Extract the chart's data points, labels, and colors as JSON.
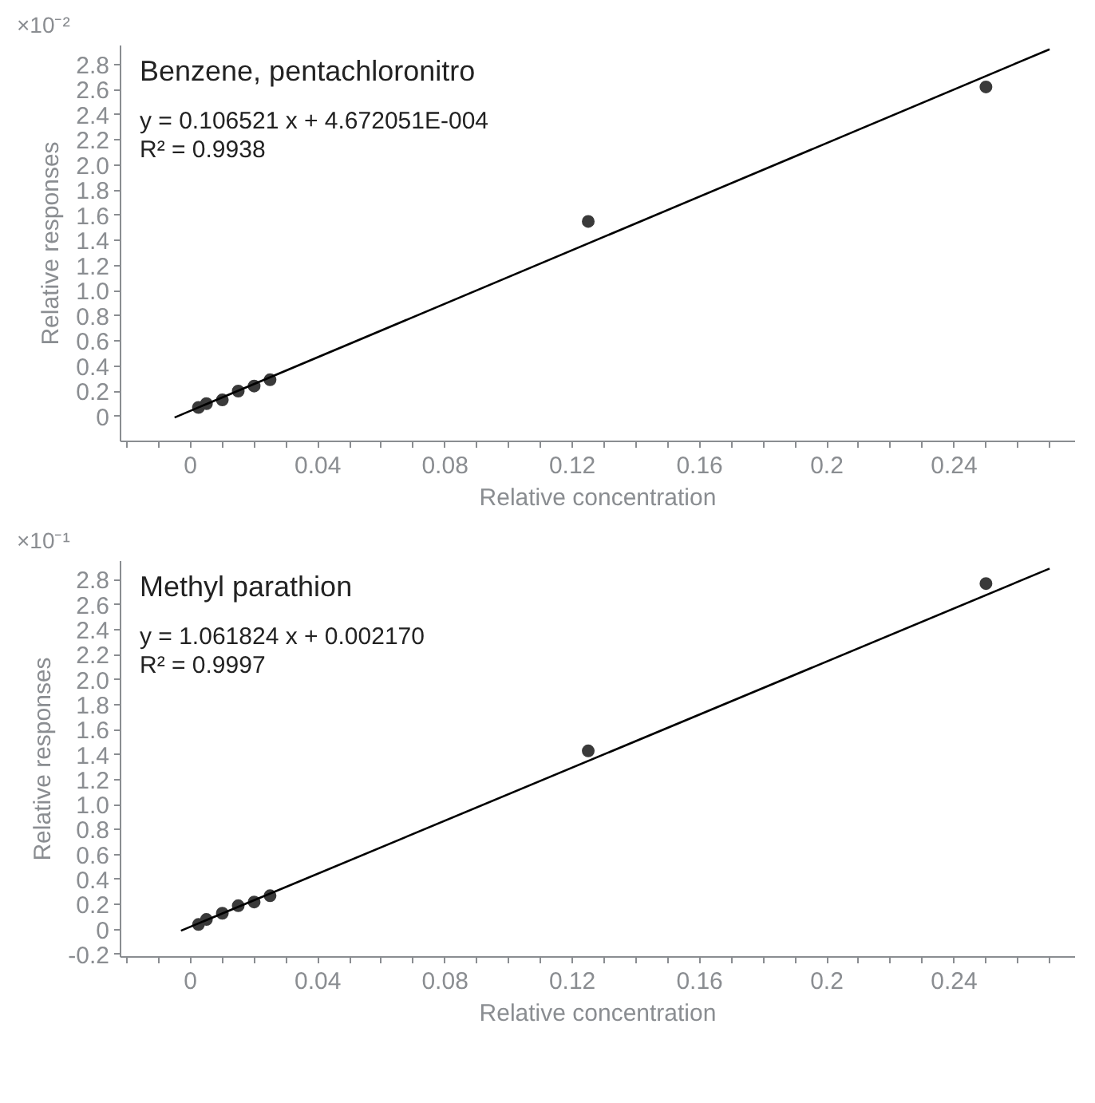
{
  "chart_data": [
    {
      "type": "scatter",
      "title": "Benzene, pentachloronitro",
      "xlabel": "Relative concentration",
      "ylabel": "Relative responses",
      "annotations": [
        "×10⁻²",
        "y = 0.106521 x + 4.672051E-004",
        "R² = 0.9938"
      ],
      "x": [
        0.0025,
        0.005,
        0.01,
        0.015,
        0.02,
        0.025,
        0.125,
        0.25
      ],
      "series": [
        {
          "color": "#3a3a3a",
          "marker": "circle",
          "values": [
            0.07,
            0.1,
            0.13,
            0.2,
            0.24,
            0.29,
            1.55,
            2.62
          ]
        },
        {
          "type": "line",
          "color": "#000000",
          "x": [
            -0.005,
            0.27
          ],
          "values": [
            -0.01,
            2.92
          ]
        }
      ],
      "xlim": [
        -0.022,
        0.278
      ],
      "ylim": [
        -0.2,
        2.95
      ],
      "xticks": [
        {
          "value": -0.02,
          "label": null
        },
        {
          "value": -0.01,
          "label": null
        },
        0,
        {
          "value": 0.01,
          "label": null
        },
        {
          "value": 0.02,
          "label": null
        },
        {
          "value": 0.03,
          "label": null
        },
        0.04,
        {
          "value": 0.05,
          "label": null
        },
        {
          "value": 0.06,
          "label": null
        },
        {
          "value": 0.07,
          "label": null
        },
        0.08,
        {
          "value": 0.09,
          "label": null
        },
        {
          "value": 0.1,
          "label": null
        },
        {
          "value": 0.11,
          "label": null
        },
        0.12,
        {
          "value": 0.13,
          "label": null
        },
        {
          "value": 0.14,
          "label": null
        },
        {
          "value": 0.15,
          "label": null
        },
        0.16,
        {
          "value": 0.17,
          "label": null
        },
        {
          "value": 0.18,
          "label": null
        },
        {
          "value": 0.19,
          "label": null
        },
        0.2,
        {
          "value": 0.21,
          "label": null
        },
        {
          "value": 0.22,
          "label": null
        },
        {
          "value": 0.23,
          "label": null
        },
        0.24,
        {
          "value": 0.25,
          "label": null
        },
        {
          "value": 0.26,
          "label": null
        },
        {
          "value": 0.27,
          "label": null
        }
      ],
      "yticks": [
        0,
        0.2,
        0.4,
        0.6,
        0.8,
        {
          "value": 1.0,
          "label": "1.0"
        },
        1.2,
        1.4,
        1.6,
        1.8,
        {
          "value": 2.0,
          "label": "2.0"
        },
        2.2,
        2.4,
        2.6,
        2.8
      ],
      "grid": false,
      "line_style": "solid"
    },
    {
      "type": "scatter",
      "title": "Methyl parathion",
      "xlabel": "Relative concentration",
      "ylabel": "Relative responses",
      "annotations": [
        "×10⁻¹",
        "y = 1.061824 x + 0.002170",
        "R² = 0.9997"
      ],
      "x": [
        0.0025,
        0.005,
        0.01,
        0.015,
        0.02,
        0.025,
        0.125,
        0.25
      ],
      "series": [
        {
          "color": "#3a3a3a",
          "marker": "circle",
          "values": [
            0.04,
            0.08,
            0.13,
            0.19,
            0.22,
            0.27,
            1.43,
            2.77
          ]
        },
        {
          "type": "line",
          "color": "#000000",
          "x": [
            -0.003,
            0.27
          ],
          "values": [
            -0.01,
            2.89
          ]
        }
      ],
      "xlim": [
        -0.022,
        0.278
      ],
      "ylim": [
        -0.22,
        2.95
      ],
      "xticks": [
        {
          "value": -0.02,
          "label": null
        },
        {
          "value": -0.01,
          "label": null
        },
        0,
        {
          "value": 0.01,
          "label": null
        },
        {
          "value": 0.02,
          "label": null
        },
        {
          "value": 0.03,
          "label": null
        },
        0.04,
        {
          "value": 0.05,
          "label": null
        },
        {
          "value": 0.06,
          "label": null
        },
        {
          "value": 0.07,
          "label": null
        },
        0.08,
        {
          "value": 0.09,
          "label": null
        },
        {
          "value": 0.1,
          "label": null
        },
        {
          "value": 0.11,
          "label": null
        },
        0.12,
        {
          "value": 0.13,
          "label": null
        },
        {
          "value": 0.14,
          "label": null
        },
        {
          "value": 0.15,
          "label": null
        },
        0.16,
        {
          "value": 0.17,
          "label": null
        },
        {
          "value": 0.18,
          "label": null
        },
        {
          "value": 0.19,
          "label": null
        },
        0.2,
        {
          "value": 0.21,
          "label": null
        },
        {
          "value": 0.22,
          "label": null
        },
        {
          "value": 0.23,
          "label": null
        },
        0.24,
        {
          "value": 0.25,
          "label": null
        },
        {
          "value": 0.26,
          "label": null
        },
        {
          "value": 0.27,
          "label": null
        }
      ],
      "yticks": [
        {
          "value": -0.2,
          "label": "-0.2"
        },
        0,
        0.2,
        0.4,
        0.6,
        0.8,
        {
          "value": 1.0,
          "label": "1.0"
        },
        1.2,
        1.4,
        1.6,
        1.8,
        {
          "value": 2.0,
          "label": "2.0"
        },
        2.2,
        2.4,
        2.6,
        2.8
      ],
      "grid": false,
      "line_style": "solid"
    }
  ]
}
